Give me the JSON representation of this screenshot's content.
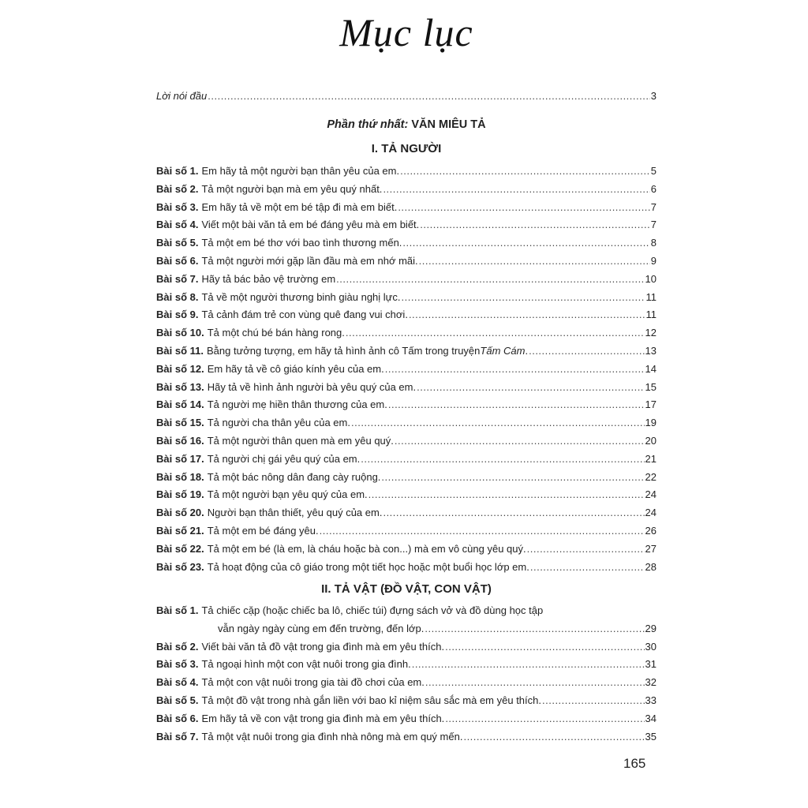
{
  "title": "Mục lục",
  "preface": {
    "text": "Lời nói đầu",
    "page": "3"
  },
  "part": {
    "label": "Phần thứ nhất:",
    "name": "VĂN MIÊU TẢ"
  },
  "sections": [
    {
      "heading": "I. TẢ NGƯỜI",
      "entries": [
        {
          "label": "Bài số 1.",
          "text": "Em hãy tả một người bạn thân yêu của em.",
          "page": "5"
        },
        {
          "label": "Bài số 2.",
          "text": "Tả một người bạn mà em yêu quý nhất.",
          "page": "6"
        },
        {
          "label": "Bài số 3.",
          "text": "Em hãy tả về một em bé tập đi mà em biết.",
          "page": "7"
        },
        {
          "label": "Bài số 4.",
          "text": "Viết một bài văn tả em bé đáng yêu mà em biết.",
          "page": "7"
        },
        {
          "label": "Bài số 5.",
          "text": "Tả một em bé thơ với bao tình thương mến.",
          "page": "8"
        },
        {
          "label": "Bài số 6.",
          "text": "Tả một người mới gặp lần đầu mà em nhớ mãi.",
          "page": "9"
        },
        {
          "label": "Bài số 7.",
          "text": "Hãy tả bác bảo vệ trường em",
          "page": "10"
        },
        {
          "label": "Bài số 8.",
          "text": "Tả về một người thương binh giàu nghị lực.",
          "page": "11"
        },
        {
          "label": "Bài số 9.",
          "text": "Tả cảnh đám trẻ con vùng quê đang vui chơi.",
          "page": "11"
        },
        {
          "label": "Bài số 10.",
          "text": "Tả một chú bé bán hàng rong.",
          "page": "12"
        },
        {
          "label": "Bài số 11.",
          "text": "Bằng tưởng tượng, em hãy tả hình ảnh cô Tấm trong truyện ",
          "italic": "Tấm Cám",
          "after": ".",
          "page": "13"
        },
        {
          "label": "Bài số 12.",
          "text": "Em hãy tả về cô giáo kính yêu của em.",
          "page": "14"
        },
        {
          "label": "Bài số 13.",
          "text": "Hãy tả về hình ảnh người bà yêu quý của em.",
          "page": "15"
        },
        {
          "label": "Bài số 14.",
          "text": "Tả người mẹ hiền thân thương của em.",
          "page": "17"
        },
        {
          "label": "Bài số 15.",
          "text": "Tả người cha thân yêu của em.",
          "page": "19"
        },
        {
          "label": "Bài số 16.",
          "text": "Tả một người thân quen mà em yêu quý.",
          "page": "20"
        },
        {
          "label": "Bài số 17.",
          "text": "Tả người chị gái yêu quý của em.",
          "page": "21"
        },
        {
          "label": "Bài số 18.",
          "text": "Tả một bác nông dân đang cày ruộng.",
          "page": "22"
        },
        {
          "label": "Bài số 19.",
          "text": "Tả một người bạn yêu quý của em.",
          "page": "24"
        },
        {
          "label": "Bài số 20.",
          "text": "Người bạn thân thiết, yêu quý của em.",
          "page": "24"
        },
        {
          "label": "Bài số 21.",
          "text": "Tả một em bé đáng yêu.",
          "page": "26"
        },
        {
          "label": "Bài số 22.",
          "text": "Tả một em bé (là em, là cháu hoặc bà con...) mà em vô cùng yêu quý.",
          "page": "27"
        },
        {
          "label": "Bài số 23.",
          "text": "Tả hoạt động của cô giáo trong một tiết học hoặc một buổi học lớp em.",
          "page": "28"
        }
      ]
    },
    {
      "heading": "II. TẢ VẬT (ĐỒ VẬT, CON VẬT)",
      "entries": [
        {
          "label": "Bài số 1.",
          "text": "Tả chiếc cặp (hoặc chiếc ba lô, chiếc túi) đựng sách vở và đồ dùng học tập",
          "continuation": "vẫn ngày ngày cùng em đến trường, đến lớp.",
          "page": "29"
        },
        {
          "label": "Bài số 2.",
          "text": "Viết bài văn tả đồ vật trong gia đình mà em yêu thích.",
          "page": "30"
        },
        {
          "label": "Bài số 3.",
          "text": "Tả ngoại hình một con vật nuôi trong gia đình.",
          "page": "31"
        },
        {
          "label": "Bài số 4.",
          "text": "Tả một con vật nuôi trong gia tài đồ chơi của em.",
          "page": "32"
        },
        {
          "label": "Bài số 5.",
          "text": "Tả một đồ vật trong nhà gắn liền với bao kỉ niệm sâu sắc mà em yêu thích.",
          "page": "33"
        },
        {
          "label": "Bài số 6.",
          "text": "Em hãy tả về con vật trong gia đình mà em yêu thích.",
          "page": "34"
        },
        {
          "label": "Bài số 7.",
          "text": "Tả một vật nuôi trong gia đình nhà nông mà em quý mến.",
          "page": "35"
        }
      ]
    }
  ],
  "page_number": "165"
}
